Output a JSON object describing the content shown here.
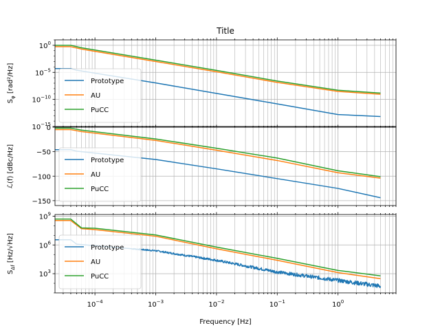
{
  "chart_data": {
    "type": "line",
    "title": "Title",
    "xlabel": "Frequency [Hz]",
    "xscale": "log",
    "xlim": [
      2.2e-05,
      9.0
    ],
    "x_ticks": [
      {
        "value": 0.0001,
        "mant": "10",
        "exp": "−4"
      },
      {
        "value": 0.001,
        "mant": "10",
        "exp": "−3"
      },
      {
        "value": 0.01,
        "mant": "10",
        "exp": "−2"
      },
      {
        "value": 0.1,
        "mant": "10",
        "exp": "−1"
      },
      {
        "value": 1,
        "mant": "10",
        "exp": "0"
      }
    ],
    "grid": true,
    "legend_placement": "lower left",
    "series_styles": [
      {
        "name": "Prototype",
        "color": "#1f77b4"
      },
      {
        "name": "AU",
        "color": "#ff7f0e"
      },
      {
        "name": "PuCC",
        "color": "#2ca02c"
      }
    ],
    "panels": [
      {
        "ylabel_main": "S",
        "ylabel_sub": "φ",
        "ylabel_rest": " [rad²/Hz]",
        "yscale": "log",
        "ylim": [
          1e-15,
          10
        ],
        "y_ticks": [
          {
            "value": 1,
            "mant": "10",
            "exp": "0"
          },
          {
            "value": 1e-05,
            "mant": "10",
            "exp": "−5"
          },
          {
            "value": 1e-10,
            "mant": "10",
            "exp": "−10"
          },
          {
            "value": 1e-15,
            "mant": "10",
            "exp": "−15"
          }
        ],
        "series": [
          {
            "name": "Prototype",
            "color": "#1f77b4",
            "points": [
              [
                2.2e-05,
                5e-05
              ],
              [
                4e-05,
                5e-05
              ],
              [
                5e-05,
                2.5e-05
              ],
              [
                0.001,
                1.1e-07
              ],
              [
                0.01,
                1.3e-09
              ],
              [
                0.1,
                1.5e-11
              ],
              [
                1,
                1.6e-13
              ],
              [
                5,
                7e-14
              ]
            ]
          },
          {
            "name": "AU",
            "color": "#ff7f0e",
            "points": [
              [
                2.2e-05,
                0.55
              ],
              [
                4e-05,
                0.55
              ],
              [
                6e-05,
                0.2
              ],
              [
                0.001,
                0.001
              ],
              [
                0.01,
                1.3e-05
              ],
              [
                0.1,
                1.4e-07
              ],
              [
                1,
                3e-09
              ],
              [
                5,
                9e-10
              ]
            ]
          },
          {
            "name": "PuCC",
            "color": "#2ca02c",
            "points": [
              [
                2.2e-05,
                1.0
              ],
              [
                4e-05,
                1.0
              ],
              [
                6e-05,
                0.35
              ],
              [
                0.001,
                0.0018
              ],
              [
                0.01,
                2.3e-05
              ],
              [
                0.1,
                2.5e-07
              ],
              [
                1,
                5e-09
              ],
              [
                5,
                1.5e-09
              ]
            ]
          }
        ]
      },
      {
        "ylabel_main": "ℒ(f) [dBc/Hz]",
        "ylabel_sub": "",
        "ylabel_rest": "",
        "yscale": "linear",
        "ylim": [
          -160,
          0
        ],
        "y_ticks": [
          {
            "value": 0,
            "mant": "0",
            "exp": ""
          },
          {
            "value": -50,
            "mant": "−50",
            "exp": ""
          },
          {
            "value": -100,
            "mant": "−100",
            "exp": ""
          },
          {
            "value": -150,
            "mant": "−150",
            "exp": ""
          }
        ],
        "series": [
          {
            "name": "Prototype",
            "color": "#1f77b4",
            "points": [
              [
                2.2e-05,
                -46
              ],
              [
                4e-05,
                -46
              ],
              [
                5e-05,
                -49
              ],
              [
                0.001,
                -66
              ],
              [
                0.01,
                -85
              ],
              [
                0.1,
                -105
              ],
              [
                1,
                -125
              ],
              [
                5,
                -144
              ]
            ]
          },
          {
            "name": "AU",
            "color": "#ff7f0e",
            "points": [
              [
                2.2e-05,
                -5
              ],
              [
                4e-05,
                -5
              ],
              [
                6e-05,
                -9
              ],
              [
                0.001,
                -27
              ],
              [
                0.01,
                -47
              ],
              [
                0.1,
                -68
              ],
              [
                1,
                -93
              ],
              [
                5,
                -104
              ]
            ]
          },
          {
            "name": "PuCC",
            "color": "#2ca02c",
            "points": [
              [
                2.2e-05,
                -2
              ],
              [
                4e-05,
                -2
              ],
              [
                6e-05,
                -6
              ],
              [
                0.001,
                -24
              ],
              [
                0.01,
                -43
              ],
              [
                0.1,
                -63
              ],
              [
                1,
                -89
              ],
              [
                5,
                -101
              ]
            ]
          }
        ]
      },
      {
        "ylabel_main": "S",
        "ylabel_sub": "Δf",
        "ylabel_rest": " [Hz/√Hz]",
        "yscale": "log",
        "ylim": [
          10,
          1500000000.0
        ],
        "y_ticks": [
          {
            "value": 1000,
            "mant": "10",
            "exp": "3"
          },
          {
            "value": 1000000,
            "mant": "10",
            "exp": "6"
          },
          {
            "value": 1000000000,
            "mant": "10",
            "exp": "9"
          }
        ],
        "series": [
          {
            "name": "Prototype",
            "color": "#1f77b4",
            "noise_from": 0.0004,
            "points": [
              [
                2.2e-05,
                3500000.0
              ],
              [
                4e-05,
                3500000.0
              ],
              [
                5e-05,
                1200000.0
              ],
              [
                0.001,
                250000.0
              ],
              [
                0.01,
                25000.0
              ],
              [
                0.1,
                1500.0
              ],
              [
                1,
                200
              ],
              [
                5,
                50
              ]
            ]
          },
          {
            "name": "AU",
            "color": "#ff7f0e",
            "points": [
              [
                2.2e-05,
                350000000.0
              ],
              [
                4e-05,
                350000000.0
              ],
              [
                6e-05,
                50000000.0
              ],
              [
                0.0001,
                40000000.0
              ],
              [
                0.001,
                8000000.0
              ],
              [
                0.01,
                400000.0
              ],
              [
                0.1,
                25000.0
              ],
              [
                1,
                1300.0
              ],
              [
                5,
                300
              ]
            ]
          },
          {
            "name": "PuCC",
            "color": "#2ca02c",
            "points": [
              [
                2.2e-05,
                500000000.0
              ],
              [
                4e-05,
                500000000.0
              ],
              [
                6e-05,
                60000000.0
              ],
              [
                0.0001,
                55000000.0
              ],
              [
                0.001,
                11000000.0
              ],
              [
                0.01,
                600000.0
              ],
              [
                0.1,
                40000.0
              ],
              [
                1,
                2200.0
              ],
              [
                5,
                600
              ]
            ]
          }
        ]
      }
    ]
  }
}
